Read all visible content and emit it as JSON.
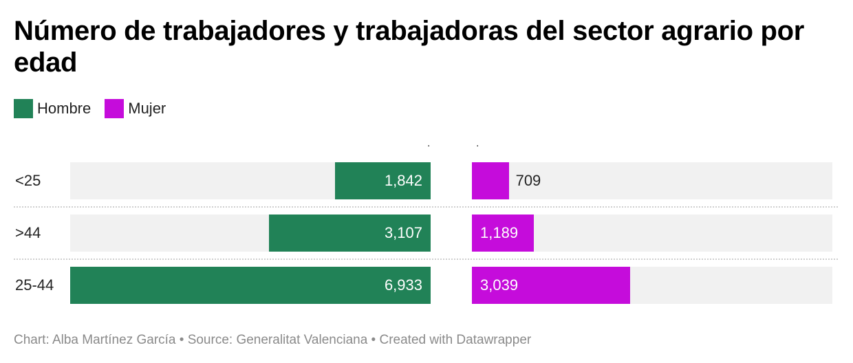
{
  "title": "Número de trabajadores y trabajadoras del sector agrario por edad",
  "legend": [
    {
      "label": "Hombre",
      "color": "#218257"
    },
    {
      "label": "Mujer",
      "color": "#c50cdb"
    }
  ],
  "column_markers": [
    ".",
    "."
  ],
  "footer": "Chart: Alba Martínez García • Source: Generalitat Valenciana • Created with Datawrapper",
  "chart_data": {
    "type": "bar",
    "orientation": "horizontal",
    "layout": "split bars (Hombre left, Mujer right)",
    "categories": [
      "<25",
      ">44",
      "25-44"
    ],
    "series": [
      {
        "name": "Hombre",
        "color": "#218257",
        "values": [
          1842,
          3107,
          6933
        ],
        "labels": [
          "1,842",
          "3,107",
          "6,933"
        ]
      },
      {
        "name": "Mujer",
        "color": "#c50cdb",
        "values": [
          709,
          1189,
          3039
        ],
        "labels": [
          "709",
          "1,189",
          "3,039"
        ]
      }
    ],
    "xlim": [
      0,
      6933
    ],
    "title": "Número de trabajadores y trabajadoras del sector agrario por edad",
    "legend_position": "top-left",
    "grid": false
  }
}
